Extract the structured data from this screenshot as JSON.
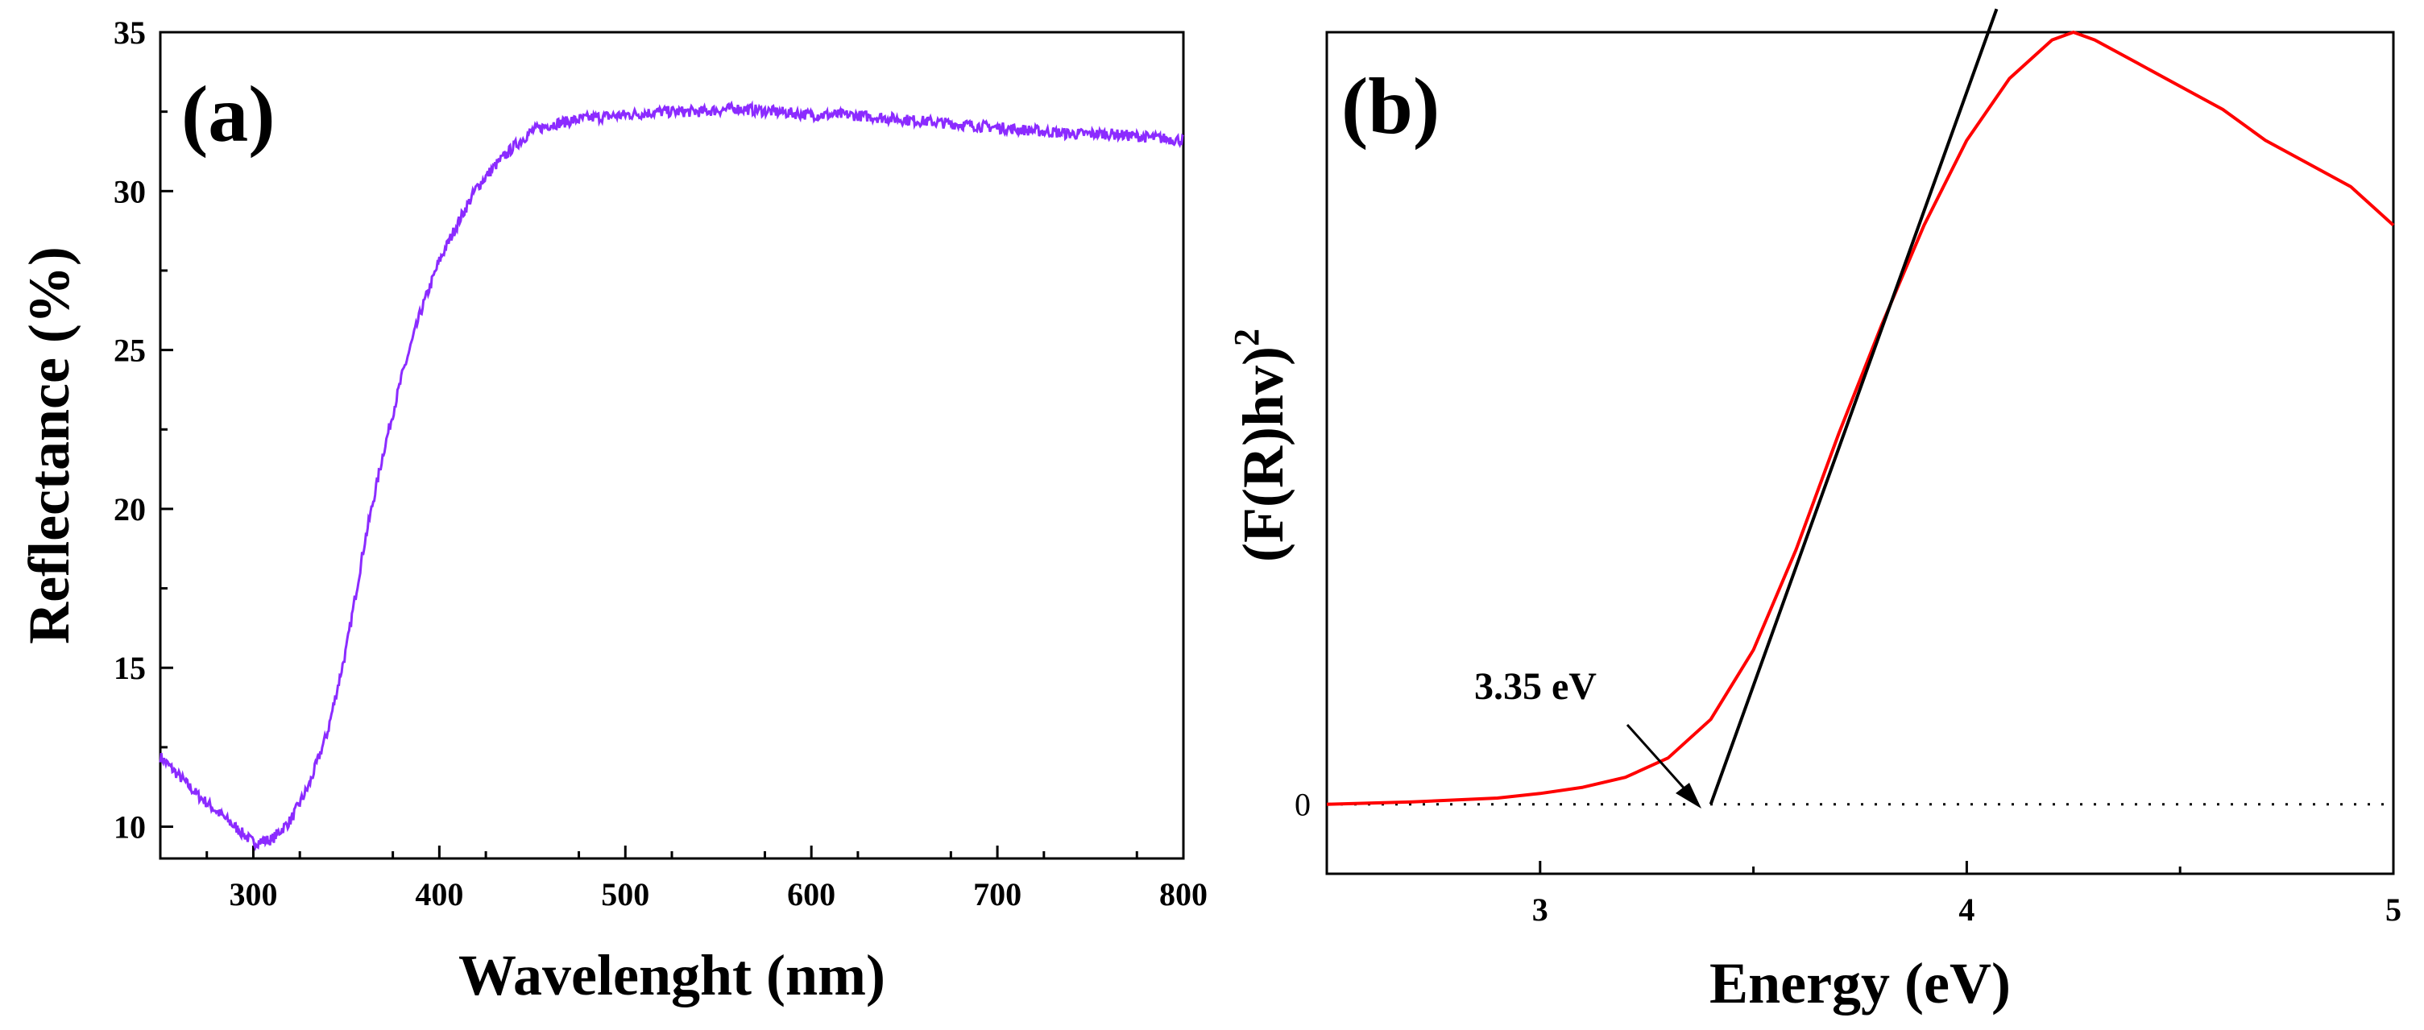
{
  "chart_data": [
    {
      "type": "line",
      "panel_label": "(a)",
      "xlabel": "Wavelenght (nm)",
      "ylabel": "Reflectance (%)",
      "xlim": [
        250,
        800
      ],
      "ylim": [
        9,
        35
      ],
      "xticks": [
        300,
        400,
        500,
        600,
        700,
        800
      ],
      "yticks": [
        10,
        15,
        20,
        25,
        30,
        35
      ],
      "grid": false,
      "series": [
        {
          "name": "Reflectance",
          "color": "#8B2BFF",
          "x": [
            250,
            260,
            270,
            280,
            290,
            300,
            310,
            320,
            330,
            340,
            350,
            360,
            370,
            380,
            390,
            400,
            410,
            420,
            430,
            440,
            450,
            460,
            470,
            480,
            500,
            520,
            540,
            560,
            580,
            600,
            620,
            640,
            660,
            680,
            700,
            720,
            740,
            760,
            780,
            800
          ],
          "y": [
            12.2,
            11.6,
            11.0,
            10.5,
            10.0,
            9.5,
            9.6,
            10.2,
            11.3,
            13.0,
            15.6,
            19.0,
            21.8,
            24.2,
            26.2,
            27.8,
            29.0,
            30.1,
            30.8,
            31.4,
            31.9,
            32.1,
            32.2,
            32.3,
            32.4,
            32.5,
            32.5,
            32.6,
            32.5,
            32.4,
            32.4,
            32.3,
            32.2,
            32.1,
            32.0,
            31.9,
            31.8,
            31.8,
            31.7,
            31.6
          ]
        }
      ]
    },
    {
      "type": "line",
      "panel_label": "(b)",
      "xlabel": "Energy (eV)",
      "ylabel_main": "(F(R)hv)",
      "ylabel_sup": "2",
      "xlim": [
        2.5,
        5.0
      ],
      "ylim": [
        -0.09,
        1.0
      ],
      "xticks": [
        3,
        4,
        5
      ],
      "ytick_labels": [
        "0"
      ],
      "zero_line": "dotted",
      "annotation": "3.35 eV",
      "band_gap_ev": 3.35,
      "grid": false,
      "series": [
        {
          "name": "(F(R)hv)^2",
          "color": "#FF0000",
          "x": [
            2.5,
            2.7,
            2.9,
            3.0,
            3.1,
            3.2,
            3.3,
            3.4,
            3.5,
            3.6,
            3.7,
            3.8,
            3.9,
            4.0,
            4.1,
            4.2,
            4.25,
            4.3,
            4.4,
            4.5,
            4.6,
            4.7,
            4.8,
            4.9,
            5.0
          ],
          "y": [
            0.0,
            0.003,
            0.008,
            0.014,
            0.022,
            0.035,
            0.06,
            0.11,
            0.2,
            0.33,
            0.48,
            0.62,
            0.75,
            0.86,
            0.94,
            0.99,
            1.0,
            0.99,
            0.96,
            0.93,
            0.9,
            0.86,
            0.83,
            0.8,
            0.75
          ]
        },
        {
          "name": "Tangent fit",
          "color": "#000000",
          "x": [
            3.4,
            4.07
          ],
          "y": [
            0.0,
            1.03
          ]
        }
      ]
    }
  ]
}
